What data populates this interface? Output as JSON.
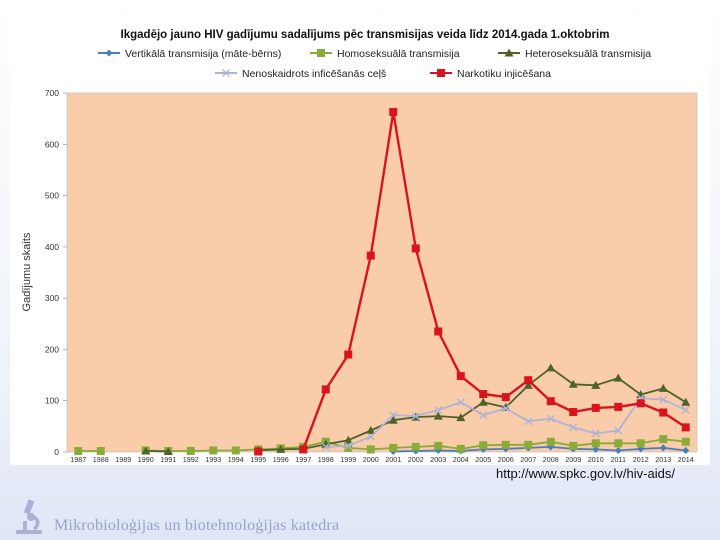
{
  "chart_data": {
    "type": "line",
    "title": "Ikgadējo jauno HIV gadījumu sadalījums pēc transmisijas veida līdz 2014.gada 1.oktobrim",
    "xlabel": "",
    "ylabel": "Gadījumu skaits",
    "ylim": [
      0,
      700
    ],
    "yticks": [
      0,
      100,
      200,
      300,
      400,
      500,
      600,
      700
    ],
    "grid": false,
    "legend_position": "top",
    "categories": [
      "1987",
      "1988",
      "1989",
      "1990",
      "1991",
      "1992",
      "1993",
      "1994",
      "1995",
      "1996",
      "1997",
      "1998",
      "1999",
      "2000",
      "2001",
      "2002",
      "2003",
      "2004",
      "2005",
      "2006",
      "2007",
      "2008",
      "2009",
      "2010",
      "2011",
      "2012",
      "2013",
      "2014"
    ],
    "series": [
      {
        "name": "Vertikālā transmisija (māte-bērns)",
        "color": "#4a7ebb",
        "marker": "diamond",
        "values": [
          null,
          null,
          null,
          null,
          null,
          null,
          null,
          null,
          null,
          null,
          null,
          null,
          null,
          null,
          1,
          2,
          3,
          2,
          5,
          6,
          8,
          10,
          6,
          5,
          3,
          6,
          8,
          3
        ]
      },
      {
        "name": "Homoseksuālā transmisija",
        "color": "#8aaa3a",
        "marker": "square",
        "values": [
          2,
          2,
          null,
          3,
          2,
          2,
          3,
          3,
          5,
          7,
          10,
          20,
          8,
          5,
          8,
          10,
          12,
          6,
          13,
          14,
          14,
          20,
          12,
          17,
          17,
          17,
          25,
          20
        ]
      },
      {
        "name": "Heteroseksuālā transmisija",
        "color": "#4f6228",
        "marker": "triangle",
        "values": [
          null,
          null,
          null,
          2,
          1,
          null,
          null,
          null,
          3,
          5,
          6,
          15,
          23,
          42,
          62,
          68,
          70,
          67,
          97,
          87,
          130,
          164,
          132,
          130,
          144,
          112,
          124,
          97
        ]
      },
      {
        "name": "Nenoskaidrots inficēšanās ceļš",
        "color": "#b0b2d6",
        "marker": "x",
        "values": [
          null,
          null,
          null,
          null,
          null,
          null,
          null,
          null,
          null,
          null,
          null,
          10,
          12,
          30,
          72,
          70,
          82,
          97,
          72,
          85,
          60,
          65,
          48,
          36,
          42,
          105,
          102,
          82
        ]
      },
      {
        "name": "Narkotiku injicēšana",
        "color": "#d9141e",
        "marker": "square",
        "values": [
          null,
          null,
          null,
          null,
          null,
          null,
          null,
          null,
          1,
          null,
          5,
          122,
          190,
          383,
          663,
          397,
          235,
          148,
          113,
          107,
          140,
          99,
          78,
          86,
          88,
          95,
          77,
          48
        ]
      }
    ]
  },
  "source_url": "http://www.spkc.gov.lv/hiv-aids/",
  "footer_text": "Mikrobioloģijas un biotehnoloģijas katedra"
}
